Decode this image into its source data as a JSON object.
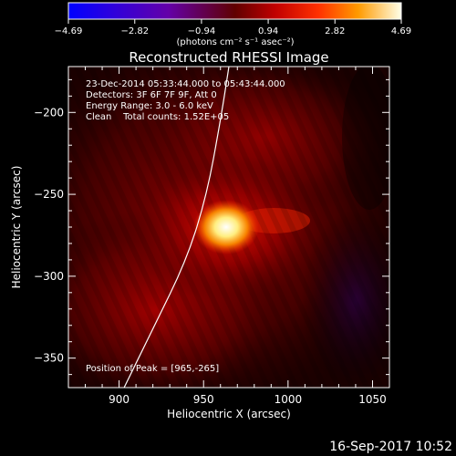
{
  "chart_data": {
    "type": "heatmap",
    "title": "Reconstructed RHESSI Image",
    "xlabel": "Heliocentric X (arcsec)",
    "ylabel": "Heliocentric Y (arcsec)",
    "xlim": [
      870,
      1060
    ],
    "ylim": [
      -368,
      -172
    ],
    "x_ticks": [
      {
        "v": 900,
        "label": "900"
      },
      {
        "v": 950,
        "label": "950"
      },
      {
        "v": 1000,
        "label": "1000"
      },
      {
        "v": 1050,
        "label": "1050"
      }
    ],
    "y_ticks": [
      {
        "v": -200,
        "label": "−200"
      },
      {
        "v": -250,
        "label": "−250"
      },
      {
        "v": -300,
        "label": "−300"
      },
      {
        "v": -350,
        "label": "−350"
      }
    ],
    "colorbar": {
      "range": [
        -4.69,
        4.69
      ],
      "ticks": [
        {
          "v": -4.69,
          "label": "−4.69"
        },
        {
          "v": -2.82,
          "label": "−2.82"
        },
        {
          "v": -0.94,
          "label": "−0.94"
        },
        {
          "v": 0.94,
          "label": "0.94"
        },
        {
          "v": 2.82,
          "label": "2.82"
        },
        {
          "v": 4.69,
          "label": "4.69"
        }
      ],
      "unit_label": "(photons cm⁻² s⁻¹ asec⁻²)"
    },
    "peak": {
      "x": 965,
      "y": -265,
      "value": 4.69
    },
    "limb_curve": [
      [
        903,
        -368
      ],
      [
        920,
        -332
      ],
      [
        940,
        -290
      ],
      [
        952,
        -250
      ],
      [
        960,
        -205
      ],
      [
        965,
        -172
      ]
    ],
    "info_lines": [
      "23-Dec-2014 05:33:44.000 to 05:43:44.000",
      "Detectors: 3F 6F 7F 9F, Att 0",
      "Energy Range: 3.0 - 6.0 keV",
      "Clean    Total counts: 1.52E+05"
    ],
    "peak_label": "Position of Peak = [965,-265]",
    "grid": false,
    "legend": "none"
  },
  "footer": {
    "timestamp": "16-Sep-2017 10:52"
  },
  "colors": {
    "background": "#000000",
    "text": "#ffffff",
    "limb": "#ffffff"
  }
}
